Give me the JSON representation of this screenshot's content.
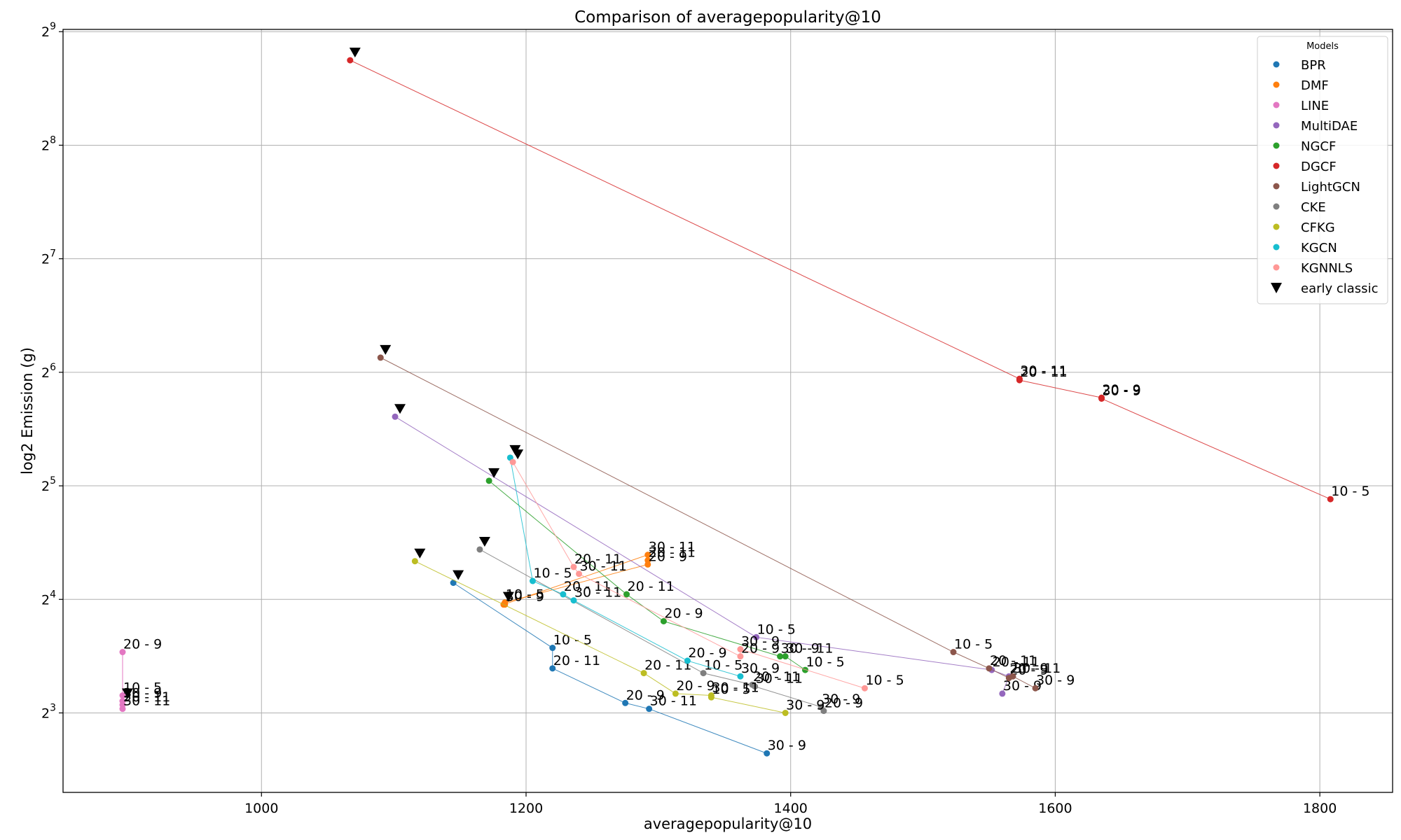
{
  "chart_data": {
    "type": "scatter",
    "title": "Comparison of averagepopularity@10",
    "xlabel": "averagepopularity@10",
    "ylabel": "log2 Emission (g)",
    "xlim": [
      850,
      1855
    ],
    "ylim_log2": [
      2.3,
      9.02
    ],
    "y_scale": "log2",
    "x_ticks": [
      1000,
      1200,
      1400,
      1600,
      1800
    ],
    "y_ticks": [
      {
        "base": "2",
        "exp": "3",
        "value": 3
      },
      {
        "base": "2",
        "exp": "4",
        "value": 4
      },
      {
        "base": "2",
        "exp": "5",
        "value": 5
      },
      {
        "base": "2",
        "exp": "6",
        "value": 6
      },
      {
        "base": "2",
        "exp": "7",
        "value": 7
      },
      {
        "base": "2",
        "exp": "8",
        "value": 8
      },
      {
        "base": "2",
        "exp": "9",
        "value": 9
      }
    ],
    "grid": true,
    "legend": {
      "title": "Models",
      "position": "top-right"
    },
    "marker_legend": {
      "label": "early classic"
    },
    "series": [
      {
        "name": "BPR",
        "color": "#1f77b4",
        "classic": {
          "x": 1145,
          "y": 17.7
        },
        "points": [
          {
            "label": "10 - 5",
            "x": 1220,
            "y": 11.9
          },
          {
            "label": "20 - 11",
            "x": 1220,
            "y": 10.5
          },
          {
            "label": "20 - 9",
            "x": 1275,
            "y": 8.5
          },
          {
            "label": "30 - 11",
            "x": 1293,
            "y": 8.2
          },
          {
            "label": "30 - 9",
            "x": 1382,
            "y": 6.25
          }
        ]
      },
      {
        "name": "DMF",
        "color": "#ff7f0e",
        "classic": {
          "x": 1183,
          "y": 15.5
        },
        "points": [
          {
            "label": "30 - 11",
            "x": 1292,
            "y": 21.0
          },
          {
            "label": "20 - 11",
            "x": 1292,
            "y": 20.3
          },
          {
            "label": "20 - 9",
            "x": 1292,
            "y": 19.8
          },
          {
            "label": "10 - 5",
            "x": 1184,
            "y": 15.7
          },
          {
            "label": "30 - 9",
            "x": 1184,
            "y": 15.5
          }
        ]
      },
      {
        "name": "LINE",
        "color": "#e377c2",
        "classic": {
          "x": 895,
          "y": 8.6
        },
        "points": [
          {
            "label": "20 - 9",
            "x": 895,
            "y": 11.6
          },
          {
            "label": "10 - 5",
            "x": 895,
            "y": 8.9
          },
          {
            "label": "30 - 9",
            "x": 895,
            "y": 8.6
          },
          {
            "label": "20 - 11",
            "x": 895,
            "y": 8.4
          },
          {
            "label": "30 - 11",
            "x": 895,
            "y": 8.2
          }
        ]
      },
      {
        "name": "MultiDAE",
        "color": "#9467bd",
        "classic": {
          "x": 1101,
          "y": 48.8
        },
        "points": [
          {
            "label": "10 - 5",
            "x": 1374,
            "y": 12.7
          },
          {
            "label": "20 - 11",
            "x": 1552,
            "y": 10.4
          },
          {
            "label": "20 - 9",
            "x": 1565,
            "y": 10.0
          },
          {
            "label": "30 - 9",
            "x": 1560,
            "y": 9.0
          }
        ]
      },
      {
        "name": "NGCF",
        "color": "#2ca02c",
        "classic": {
          "x": 1172,
          "y": 33.0
        },
        "points": [
          {
            "label": "20 - 11",
            "x": 1276,
            "y": 16.5
          },
          {
            "label": "20 - 9",
            "x": 1304,
            "y": 14.0
          },
          {
            "label": "30 - 9",
            "x": 1392,
            "y": 11.3
          },
          {
            "label": "30 - 11",
            "x": 1396,
            "y": 11.3
          },
          {
            "label": "10 - 5",
            "x": 1411,
            "y": 10.4
          }
        ]
      },
      {
        "name": "DGCF",
        "color": "#d62728",
        "classic": {
          "x": 1067,
          "y": 430
        },
        "points": [
          {
            "label": "30 - 11",
            "x": 1573,
            "y": 61.5
          },
          {
            "label": "20 - 11",
            "x": 1573,
            "y": 61.0
          },
          {
            "label": "20 - 9",
            "x": 1635,
            "y": 54.8
          },
          {
            "label": "30 - 9",
            "x": 1635,
            "y": 54.5
          },
          {
            "label": "10 - 5",
            "x": 1808,
            "y": 29.5
          }
        ]
      },
      {
        "name": "LightGCN",
        "color": "#8c564b",
        "classic": {
          "x": 1090,
          "y": 70.0
        },
        "points": [
          {
            "label": "10 - 5",
            "x": 1523,
            "y": 11.6
          },
          {
            "label": "20 - 11",
            "x": 1550,
            "y": 10.5
          },
          {
            "label": "20 - 9",
            "x": 1565,
            "y": 9.9
          },
          {
            "label": "30 - 11",
            "x": 1568,
            "y": 10.0
          },
          {
            "label": "30 - 9",
            "x": 1585,
            "y": 9.3
          }
        ]
      },
      {
        "name": "CKE",
        "color": "#7f7f7f",
        "classic": {
          "x": 1165,
          "y": 21.7
        },
        "points": [
          {
            "label": "10 - 5",
            "x": 1334,
            "y": 10.2
          },
          {
            "label": "20 - 11",
            "x": 1371,
            "y": 9.5
          },
          {
            "label": "30 - 11",
            "x": 1373,
            "y": 9.4
          },
          {
            "label": "30 - 9",
            "x": 1423,
            "y": 8.3
          },
          {
            "label": "20 - 9",
            "x": 1425,
            "y": 8.1
          }
        ]
      },
      {
        "name": "CFKG",
        "color": "#bcbd22",
        "classic": {
          "x": 1116,
          "y": 20.2
        },
        "points": [
          {
            "label": "20 - 11",
            "x": 1289,
            "y": 10.2
          },
          {
            "label": "20 - 9",
            "x": 1313,
            "y": 9.0
          },
          {
            "label": "30 - 11",
            "x": 1340,
            "y": 8.9
          },
          {
            "label": "10 - 5",
            "x": 1340,
            "y": 8.8
          },
          {
            "label": "30 - 9",
            "x": 1396,
            "y": 8.0
          }
        ]
      },
      {
        "name": "KGCN",
        "color": "#17becf",
        "classic": {
          "x": 1188,
          "y": 38.0
        },
        "points": [
          {
            "label": "10 - 5",
            "x": 1205,
            "y": 17.9
          },
          {
            "label": "20 - 11",
            "x": 1228,
            "y": 16.5
          },
          {
            "label": "30 - 11",
            "x": 1236,
            "y": 15.9
          },
          {
            "label": "20 - 9",
            "x": 1322,
            "y": 11.0
          },
          {
            "label": "30 - 9",
            "x": 1362,
            "y": 10.0
          }
        ]
      },
      {
        "name": "KGNNLS",
        "color": "#ff9896",
        "classic": {
          "x": 1190,
          "y": 37.0
        },
        "points": [
          {
            "label": "20 - 11",
            "x": 1236,
            "y": 19.5
          },
          {
            "label": "30 - 11",
            "x": 1240,
            "y": 18.7
          },
          {
            "label": "20 - 9",
            "x": 1362,
            "y": 11.3
          },
          {
            "label": "30 - 9",
            "x": 1362,
            "y": 11.8
          },
          {
            "label": "10 - 5",
            "x": 1456,
            "y": 9.3
          }
        ]
      }
    ]
  }
}
